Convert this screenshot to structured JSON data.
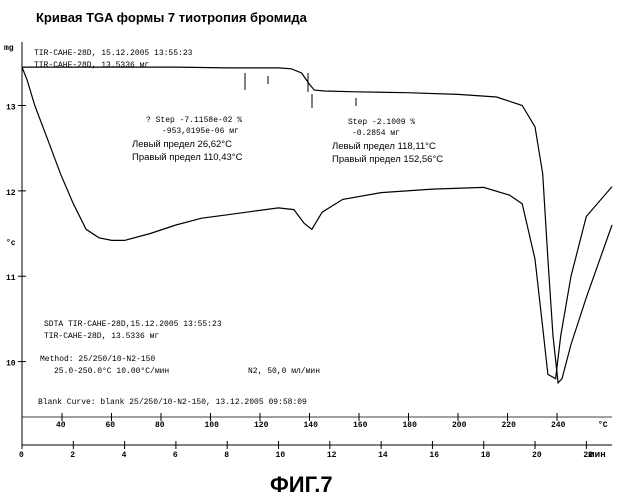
{
  "page_title": "Кривая TGA формы 7 тиотропия бромида",
  "figure_label": "ФИГ.7",
  "header_lines": [
    "TIR-CAHE-28D, 15.12.2005 13:55:23",
    "TIR-CAHE-28D, 13.5336 мг"
  ],
  "y_unit_top": "mg",
  "y_unit_mid": "°c",
  "x_unit_label": "мин",
  "top_axis_unit": "°C",
  "step1": {
    "step_line": "? Step -7.1158e-02 %",
    "mass_line": "-953,0195e-06 мг",
    "left_limit": "Левый предел 26,62°C",
    "right_limit": "Правый предел 110,43°C"
  },
  "step2": {
    "step_line": "Step -2.1009 %",
    "mass_line": "-0.2854 мг",
    "left_limit": "Левый предел 118,11°C",
    "right_limit": "Правый предел 152,56°C"
  },
  "info_block": [
    "SDTA TIR-CAHE-28D,15.12.2005 13:55:23",
    "TIR-CAHE-28D, 13.5336 мг",
    "Method: 25/250/10-N2-150",
    "25.0-250.0°C 10.00°C/мин",
    "N2, 50,0 мл/мин"
  ],
  "blank_curve": "Blank Curve: blank 25/250/10-N2-150, 13.12.2005 09:58:09",
  "chart_data": {
    "type": "line",
    "title": "Кривая TGA формы 7 тиотропия бромида",
    "xlabel": "мин",
    "ylabel": "mg",
    "xlim": [
      0,
      23
    ],
    "ylim": [
      9.55,
      13.65
    ],
    "x_ticks": [
      0,
      2,
      4,
      6,
      8,
      10,
      12,
      14,
      16,
      18,
      20,
      22
    ],
    "x_tick_labels": [
      "0",
      "2",
      "4",
      "6",
      "8",
      "10",
      "12",
      "14",
      "16",
      "18",
      "20",
      "22"
    ],
    "y_ticks": [
      10,
      11,
      12,
      13
    ],
    "y_tick_labels": [
      "10",
      "11",
      "12",
      "13"
    ],
    "top_axis_ticks": [
      40,
      60,
      80,
      100,
      120,
      140,
      160,
      180,
      200,
      220,
      240
    ],
    "top_axis_labels": [
      "40",
      "60",
      "80",
      "100",
      "120",
      "140",
      "160",
      "180",
      "200",
      "220",
      "240"
    ],
    "series": [
      {
        "name": "TGA",
        "x": [
          0,
          1,
          2,
          4,
          6,
          8,
          8.5,
          9,
          10,
          10.5,
          10.9,
          11.2,
          11.4,
          11.8,
          13,
          15,
          17,
          18.5,
          19.5,
          20.0,
          20.3,
          20.5,
          20.7,
          20.9,
          21.05,
          21.4,
          22,
          23
        ],
        "y": [
          13.45,
          13.45,
          13.45,
          13.45,
          13.45,
          13.44,
          13.44,
          13.44,
          13.44,
          13.43,
          13.38,
          13.25,
          13.18,
          13.17,
          13.16,
          13.15,
          13.13,
          13.1,
          13.0,
          12.75,
          12.2,
          11.2,
          10.3,
          9.75,
          9.8,
          10.2,
          10.75,
          11.6
        ]
      },
      {
        "name": "SDTA",
        "x": [
          0,
          0.2,
          0.5,
          1,
          1.5,
          2,
          2.5,
          3,
          3.5,
          4,
          5,
          6,
          7,
          8,
          9,
          10,
          10.6,
          11.0,
          11.3,
          11.7,
          12.5,
          14,
          16,
          18,
          19,
          19.5,
          20.0,
          20.3,
          20.5,
          20.8,
          21.0,
          21.4,
          22,
          23
        ],
        "y": [
          13.45,
          13.3,
          13.0,
          12.6,
          12.2,
          11.85,
          11.55,
          11.45,
          11.42,
          11.42,
          11.5,
          11.6,
          11.68,
          11.72,
          11.76,
          11.8,
          11.78,
          11.62,
          11.55,
          11.75,
          11.9,
          11.98,
          12.02,
          12.04,
          11.95,
          11.85,
          11.2,
          10.4,
          9.85,
          9.8,
          10.3,
          11.0,
          11.7,
          12.05
        ]
      }
    ]
  }
}
